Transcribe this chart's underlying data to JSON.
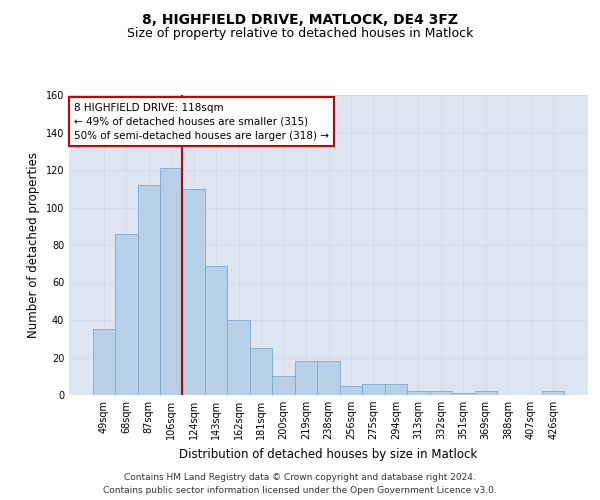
{
  "title": "8, HIGHFIELD DRIVE, MATLOCK, DE4 3FZ",
  "subtitle": "Size of property relative to detached houses in Matlock",
  "xlabel": "Distribution of detached houses by size in Matlock",
  "ylabel": "Number of detached properties",
  "categories": [
    "49sqm",
    "68sqm",
    "87sqm",
    "106sqm",
    "124sqm",
    "143sqm",
    "162sqm",
    "181sqm",
    "200sqm",
    "219sqm",
    "238sqm",
    "256sqm",
    "275sqm",
    "294sqm",
    "313sqm",
    "332sqm",
    "351sqm",
    "369sqm",
    "388sqm",
    "407sqm",
    "426sqm"
  ],
  "values": [
    35,
    86,
    112,
    121,
    110,
    69,
    40,
    25,
    10,
    18,
    18,
    5,
    6,
    6,
    2,
    2,
    1,
    2,
    0,
    0,
    2
  ],
  "bar_color": "#b8cfe8",
  "bar_edge_color": "#7aaad0",
  "vline_color": "#cc0000",
  "vline_pos": 3.5,
  "annotation_text": "8 HIGHFIELD DRIVE: 118sqm\n← 49% of detached houses are smaller (315)\n50% of semi-detached houses are larger (318) →",
  "annotation_box_color": "#ffffff",
  "annotation_box_edge": "#cc0000",
  "ylim": [
    0,
    160
  ],
  "yticks": [
    0,
    20,
    40,
    60,
    80,
    100,
    120,
    140,
    160
  ],
  "grid_color": "#d0d8e8",
  "bg_color": "#dde6f0",
  "footer": "Contains HM Land Registry data © Crown copyright and database right 2024.\nContains public sector information licensed under the Open Government Licence v3.0.",
  "title_fontsize": 10,
  "subtitle_fontsize": 9,
  "xlabel_fontsize": 8.5,
  "ylabel_fontsize": 8.5,
  "tick_fontsize": 7,
  "footer_fontsize": 6.5,
  "ann_fontsize": 7.5
}
